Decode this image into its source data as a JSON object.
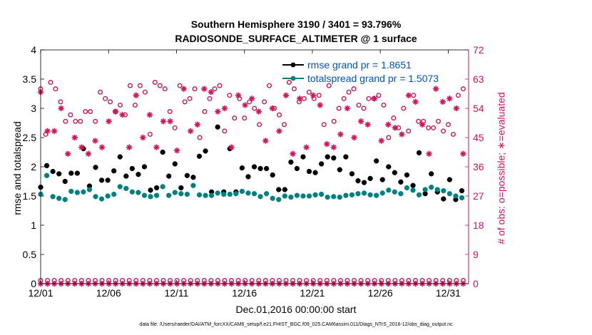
{
  "chart_data": {
    "type": "scatter",
    "title_line1": "Southern Hemisphere 3190 / 3401 = 93.796%",
    "title_line2": "RADIOSONDE_SURFACE_ALTIMETER @ 1 surface",
    "xlabel": "Dec.01,2016 00:00:00 start",
    "ylabel_left": "rmse and totalspread",
    "ylabel_right": "# of obs: o=possible; ∗=evaluated",
    "footer": "data file: /Users/raeder/DAI/ATM_forcXX/CAM6_setup/f.e21.FHIST_BGC.f09_025.CAM6assim.011/Diags_NTrS_2016-12/obs_diag_output.nc",
    "xlim": [
      0,
      31.5
    ],
    "ylim_left": [
      0,
      4
    ],
    "ylim_right": [
      0,
      72
    ],
    "x_ticks": [
      0,
      5,
      10,
      15,
      20,
      25,
      30
    ],
    "x_tick_labels": [
      "12/01",
      "12/06",
      "12/11",
      "12/16",
      "12/21",
      "12/26",
      "12/31"
    ],
    "y_ticks_left": [
      0,
      0.5,
      1,
      1.5,
      2,
      2.5,
      3,
      3.5,
      4
    ],
    "y_tick_labels_left": [
      "0",
      "0.5",
      "1",
      "1.5",
      "2",
      "2.5",
      "3",
      "3.5",
      "4"
    ],
    "y_ticks_right": [
      0,
      9,
      18,
      27,
      36,
      45,
      54,
      63,
      72
    ],
    "y_tick_labels_right": [
      "0",
      "9",
      "18",
      "27",
      "36",
      "45",
      "54",
      "63",
      "72"
    ],
    "x": [
      0.0,
      0.25,
      0.5,
      0.75,
      1.0,
      1.25,
      1.5,
      1.75,
      2.0,
      2.25,
      2.5,
      2.75,
      3.0,
      3.25,
      3.5,
      3.75,
      4.0,
      4.25,
      4.5,
      4.75,
      5.0,
      5.25,
      5.5,
      5.75,
      6.0,
      6.25,
      6.5,
      6.75,
      7.0,
      7.25,
      7.5,
      7.75,
      8.0,
      8.25,
      8.5,
      8.75,
      9.0,
      9.25,
      9.5,
      9.75,
      10.0,
      10.25,
      10.5,
      10.75,
      11.0,
      11.25,
      11.5,
      11.75,
      12.0,
      12.25,
      12.5,
      12.75,
      13.0,
      13.25,
      13.5,
      13.75,
      14.0,
      14.25,
      14.5,
      14.75,
      15.0,
      15.25,
      15.5,
      15.75,
      16.0,
      16.25,
      16.5,
      16.75,
      17.0,
      17.25,
      17.5,
      17.75,
      18.0,
      18.25,
      18.5,
      18.75,
      19.0,
      19.25,
      19.5,
      19.75,
      20.0,
      20.25,
      20.5,
      20.75,
      21.0,
      21.25,
      21.5,
      21.75,
      22.0,
      22.25,
      22.5,
      22.75,
      23.0,
      23.25,
      23.5,
      23.75,
      24.0,
      24.25,
      24.5,
      24.75,
      25.0,
      25.25,
      25.5,
      25.75,
      26.0,
      26.25,
      26.5,
      26.75,
      27.0,
      27.25,
      27.5,
      27.75,
      28.0,
      28.25,
      28.5,
      28.75,
      29.0,
      29.25,
      29.5,
      29.75,
      30.0,
      30.25,
      30.5,
      30.75
    ],
    "series": [
      {
        "name": "rmse",
        "legend": "rmse grand pr = 1.8651",
        "color": "#000000",
        "marker": "filled-circle",
        "axis": "left",
        "values": [
          1.65,
          2.02,
          1.92,
          1.88,
          1.75,
          1.89,
          1.89,
          2.31,
          1.67,
          1.99,
          1.77,
          1.77,
          1.93,
          2.17,
          1.84,
          1.97,
          1.87,
          2.0,
          1.6,
          1.64,
          2.25,
          1.84,
          2.05,
          1.64,
          1.85,
          1.82,
          2.18,
          2.27,
          1.57,
          2.68,
          1.57,
          2.31,
          1.57,
          1.98,
          1.83,
          2.0,
          1.97,
          1.97,
          1.86,
          1.61,
          1.61,
          2.08,
          1.97,
          2.17,
          1.92,
          1.9,
          2.05,
          2.17,
          2.15,
          1.95,
          2.17,
          1.88,
          1.76,
          1.73,
          1.8,
          2.1,
          1.78,
          2.0,
          1.9,
          1.74,
          1.86,
          1.68,
          2.24,
          1.54,
          1.88,
          1.57,
          1.45,
          1.78,
          1.44,
          1.59
        ]
      },
      {
        "name": "totalspread",
        "legend": "totalspread grand pr = 1.5073",
        "color": "#008080",
        "marker": "filled-circle",
        "axis": "left",
        "values": [
          1.53,
          1.85,
          1.49,
          1.46,
          1.44,
          1.58,
          1.56,
          1.57,
          1.61,
          1.49,
          1.45,
          1.5,
          1.53,
          1.66,
          1.63,
          1.57,
          1.56,
          1.51,
          1.49,
          1.51,
          1.66,
          1.51,
          1.56,
          1.54,
          1.53,
          1.68,
          1.52,
          1.51,
          1.51,
          1.55,
          1.53,
          1.53,
          1.54,
          1.58,
          1.55,
          1.54,
          1.49,
          1.54,
          1.46,
          1.44,
          1.5,
          1.48,
          1.51,
          1.5,
          1.5,
          1.52,
          1.53,
          1.48,
          1.49,
          1.48,
          1.51,
          1.52,
          1.54,
          1.55,
          1.52,
          1.51,
          1.55,
          1.6,
          1.57,
          1.54,
          1.64,
          1.6,
          1.52,
          1.61,
          1.65,
          1.61,
          1.59,
          1.54,
          1.5,
          1.47
        ]
      },
      {
        "name": "possible",
        "color": "#d4145a",
        "marker": "open-circle",
        "axis": "right",
        "values": [
          60,
          46,
          62,
          60,
          56,
          50,
          52,
          50,
          50,
          53,
          53,
          50,
          59,
          57,
          56,
          53,
          55,
          52,
          61,
          55,
          61,
          59,
          46,
          62,
          61,
          60,
          53,
          48,
          61,
          56,
          57,
          60,
          45,
          53,
          57,
          60,
          61,
          47,
          58,
          51,
          57,
          51,
          56,
          54,
          49,
          56,
          61,
          54,
          52,
          49,
          62,
          60,
          56,
          57,
          59,
          57,
          58,
          49,
          61,
          50,
          54,
          57,
          59,
          60,
          55,
          54,
          57,
          57,
          58,
          55,
          45,
          51,
          48,
          54,
          47,
          58,
          50,
          50,
          48,
          48,
          50,
          47,
          49,
          46,
          58,
          60
        ]
      },
      {
        "name": "evaluated",
        "color": "#d4145a",
        "marker": "asterisk",
        "axis": "right",
        "values": [
          59,
          47,
          47,
          54,
          40,
          45,
          42,
          40,
          44,
          42,
          50,
          53,
          52,
          42,
          58,
          45,
          52,
          42,
          50,
          50,
          41,
          60,
          47,
          49,
          60,
          59,
          53,
          54,
          42,
          58,
          55,
          57,
          53,
          44,
          54,
          47,
          58,
          40,
          57,
          42,
          58,
          55,
          43,
          42,
          46,
          54,
          45,
          50,
          49,
          57,
          44,
          49,
          48,
          46,
          58,
          56,
          49,
          40,
          60,
          56,
          57,
          54,
          40
        ]
      },
      {
        "name": "possible-zero-row",
        "color": "#d4145a",
        "marker": "open-circle",
        "axis": "right",
        "values": [
          1,
          1,
          1,
          1,
          1,
          1,
          1,
          1,
          1,
          1,
          1,
          1,
          1,
          1,
          1,
          1,
          1,
          1,
          1,
          1,
          1,
          1,
          1,
          1,
          1,
          1,
          1,
          1,
          1,
          1,
          1,
          1,
          1,
          1,
          1,
          1,
          1,
          1,
          1,
          1,
          1,
          1,
          1,
          1,
          1,
          1,
          1,
          1,
          1,
          1,
          1,
          1,
          1,
          1,
          1,
          1,
          1,
          1,
          1,
          1,
          1,
          1,
          1
        ]
      },
      {
        "name": "evaluated-zero-row",
        "color": "#d4145a",
        "marker": "asterisk",
        "axis": "right",
        "values": [
          0,
          0,
          0,
          0,
          0,
          0,
          0,
          0,
          0,
          0,
          0,
          0,
          0,
          0,
          0,
          0,
          0,
          0,
          0,
          0,
          0,
          0,
          0,
          0,
          0,
          0,
          0,
          0,
          0,
          0,
          0,
          0,
          0,
          0,
          0,
          0,
          0,
          0,
          0,
          0,
          0,
          0,
          0,
          0,
          0,
          0,
          0,
          0,
          0,
          0,
          0,
          0,
          0,
          0,
          0,
          0,
          0,
          0,
          0,
          0,
          0,
          0,
          0
        ]
      }
    ],
    "legend": {
      "placement": "top-right",
      "entries": [
        "rmse grand pr = 1.8651",
        "totalspread grand pr = 1.5073"
      ],
      "text_color": "#0050d0"
    }
  }
}
